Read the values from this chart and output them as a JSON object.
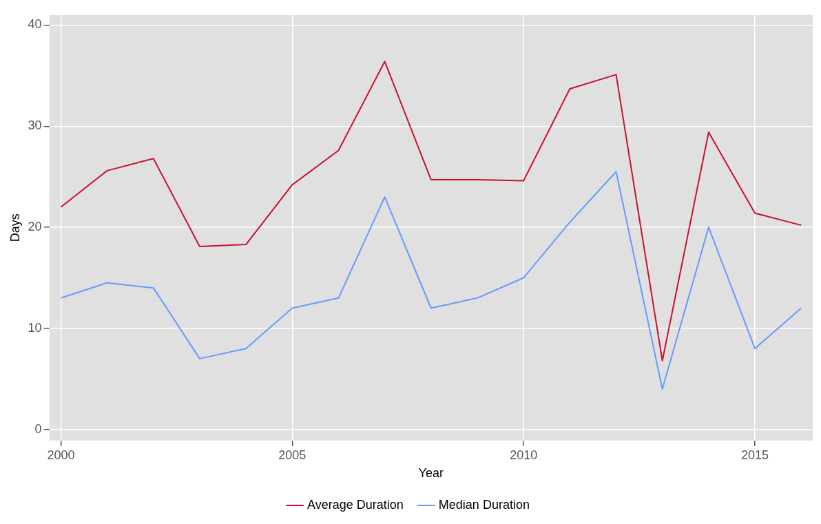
{
  "chart_data": {
    "type": "line",
    "xlabel": "Year",
    "ylabel": "Days",
    "x": [
      2000,
      2001,
      2002,
      2003,
      2004,
      2005,
      2006,
      2007,
      2008,
      2009,
      2010,
      2011,
      2012,
      2013,
      2014,
      2015,
      2016
    ],
    "series": [
      {
        "name": "Average Duration",
        "color": "#c8102e",
        "values": [
          22.0,
          25.6,
          26.8,
          18.1,
          18.3,
          24.2,
          27.6,
          36.4,
          24.7,
          24.7,
          24.6,
          33.7,
          35.1,
          6.8,
          29.4,
          21.4,
          20.2
        ]
      },
      {
        "name": "Median Duration",
        "color": "#6699ff",
        "values": [
          13,
          14.5,
          14,
          7,
          8,
          12,
          13,
          23,
          12,
          13,
          15,
          20.5,
          25.5,
          4,
          20,
          8,
          12
        ]
      }
    ],
    "xlim": [
      1999.75,
      2016.25
    ],
    "ylim": [
      -1.1,
      41
    ],
    "xticks": [
      2000,
      2005,
      2010,
      2015
    ],
    "yticks": [
      0,
      10,
      20,
      30,
      40
    ],
    "grid": true,
    "legend": "bottom",
    "marker": "none",
    "line_style": "solid"
  }
}
